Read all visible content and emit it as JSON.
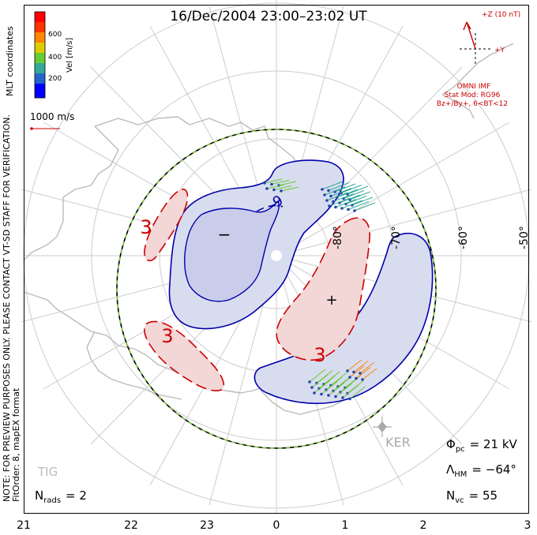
{
  "title": "16/Dec/2004 23:00–23:02 UT",
  "coordinate_system": "MLT coordinates",
  "velocity_scale": {
    "label": "Vel [m/s]",
    "ticks": [
      "200",
      "400",
      "600"
    ],
    "colors": [
      "#0000ff",
      "#2266cc",
      "#33aa99",
      "#66cc33",
      "#ddcc00",
      "#ff8800",
      "#ff3300",
      "#ff0000"
    ]
  },
  "reference_vector_label": "1000 m/s",
  "imf": {
    "z_label": "+Z (10 nT)",
    "y_label": "+Y",
    "source": "OMNI IMF",
    "model": "Stat Mod: RG96",
    "condition": "Bz+/By+, 6<BT<12",
    "color": "#cc0000"
  },
  "note_line1": "NOTE: FOR PREVIEW PURPOSES ONLY. PLEASE CONTACT VT-SD STAFF FOR VERIFICATION.",
  "note_line2": "FitOrder: 8, mapEX format",
  "latitude_labels": [
    "-80°",
    "-70°",
    "-60°",
    "-50°"
  ],
  "mlt_labels": [
    "21",
    "22",
    "23",
    "0",
    "1",
    "2",
    "3"
  ],
  "contour_labels": {
    "negative": [
      "-9"
    ],
    "positive": [
      "3",
      "3",
      "3"
    ]
  },
  "potential_extrema": {
    "min_symbol": "−",
    "max_symbol": "+"
  },
  "stations": {
    "ker": "KER",
    "tig": "TIG"
  },
  "stats": {
    "n_rads_label": "N",
    "n_rads_sub": "rads",
    "n_rads_value": "= 2",
    "phi_label": "Φ",
    "phi_sub": "pc",
    "phi_value": "= 21 kV",
    "lambda_label": "Λ",
    "lambda_sub": "HM",
    "lambda_value": "= −64°",
    "nvc_label": "N",
    "nvc_sub": "vc",
    "nvc_value": "= 55"
  },
  "colors": {
    "negative_contour": "#0000aa",
    "negative_fill": "#d8dcef",
    "positive_contour": "#cc0000",
    "positive_fill": "#f3d6d6",
    "hm_boundary_dash": "#88cc44",
    "coastline": "#bbbbbb",
    "grid": "#cccccc"
  }
}
